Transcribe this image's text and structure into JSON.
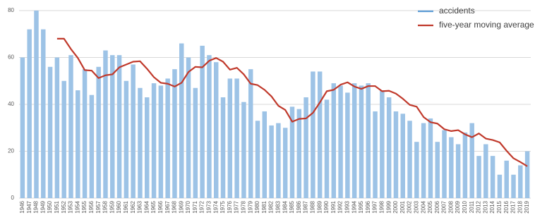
{
  "chart_data": {
    "type": "bar_line",
    "categories": [
      "1946",
      "1947",
      "1948",
      "1949",
      "1950",
      "1951",
      "1952",
      "1953",
      "1954",
      "1955",
      "1956",
      "1957",
      "1958",
      "1959",
      "1960",
      "1961",
      "1962",
      "1963",
      "1964",
      "1965",
      "1966",
      "1967",
      "1968",
      "1969",
      "1970",
      "1971",
      "1972",
      "1973",
      "1974",
      "1975",
      "1976",
      "1977",
      "1978",
      "1979",
      "1980",
      "1981",
      "1982",
      "1983",
      "1984",
      "1985",
      "1986",
      "1987",
      "1988",
      "1989",
      "1990",
      "1991",
      "1992",
      "1993",
      "1994",
      "1995",
      "1996",
      "1997",
      "1998",
      "1999",
      "2000",
      "2001",
      "2002",
      "2003",
      "2004",
      "2005",
      "2006",
      "2007",
      "2008",
      "2009",
      "2010",
      "2011",
      "2012",
      "2013",
      "2014",
      "2015",
      "2016",
      "2017",
      "2018",
      "2019"
    ],
    "series": [
      {
        "name": "accidents",
        "type": "bar",
        "color": "#9dc3e6",
        "values": [
          60,
          72,
          80,
          72,
          56,
          60,
          50,
          61,
          46,
          55,
          44,
          56,
          63,
          61,
          61,
          50,
          57,
          47,
          43,
          49,
          48,
          51,
          55,
          66,
          60,
          47,
          65,
          61,
          58,
          43,
          51,
          51,
          41,
          55,
          33,
          37,
          31,
          32,
          30,
          39,
          38,
          43,
          54,
          54,
          42,
          49,
          48,
          45,
          49,
          48,
          49,
          37,
          46,
          43,
          37,
          36,
          33,
          24,
          32,
          34,
          24,
          29,
          26,
          23,
          28,
          32,
          18,
          23,
          18,
          10,
          16,
          10,
          14,
          20
        ]
      },
      {
        "name": "five-year moving average",
        "type": "line",
        "color": "#c0392b",
        "values": [
          null,
          null,
          null,
          null,
          null,
          68,
          68,
          63.6,
          59.8,
          54.6,
          54.4,
          51.2,
          52.4,
          52.8,
          55.8,
          57,
          58.2,
          58.4,
          55.2,
          51.6,
          49.2,
          48.8,
          47.6,
          49.2,
          53.8,
          56,
          55.8,
          58.6,
          59.8,
          58.2,
          54.8,
          55.6,
          52.8,
          48.8,
          48.2,
          46.2,
          43.4,
          39.4,
          37.6,
          32.6,
          33.8,
          34,
          36.4,
          40.8,
          45.6,
          46.2,
          48.4,
          49.4,
          47.6,
          46.6,
          47.8,
          47.8,
          45.6,
          45.8,
          44.6,
          42.4,
          39.8,
          39,
          34.6,
          32.4,
          31.8,
          29.4,
          28.6,
          29,
          27.2,
          26,
          27.6,
          25.4,
          24.8,
          23.8,
          20.2,
          17,
          15.4,
          13.6
        ]
      }
    ],
    "ylim": [
      0,
      80
    ],
    "yticks": [
      0,
      20,
      40,
      60,
      80
    ],
    "grid": true,
    "legend": "top-right"
  }
}
